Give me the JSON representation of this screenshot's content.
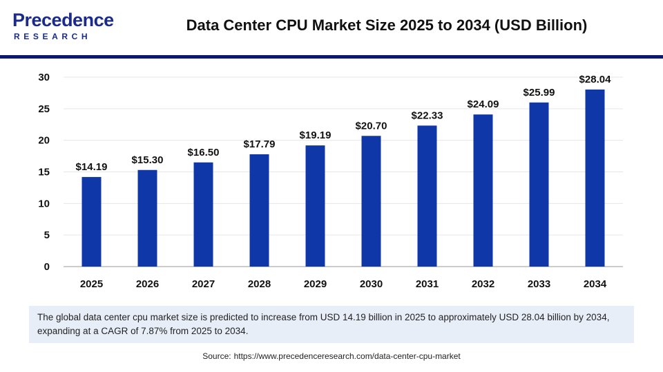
{
  "brand": {
    "name": "Precedence",
    "sub": "RESEARCH",
    "color": "#1a2b8a"
  },
  "header": {
    "title": "Data Center CPU Market Size 2025 to 2034 (USD Billion)"
  },
  "chart_data": {
    "type": "bar",
    "title": "Data Center CPU Market Size 2025 to 2034 (USD Billion)",
    "xlabel": "",
    "ylabel": "",
    "categories": [
      "2025",
      "2026",
      "2027",
      "2028",
      "2029",
      "2030",
      "2031",
      "2032",
      "2033",
      "2034"
    ],
    "values": [
      14.19,
      15.3,
      16.5,
      17.79,
      19.19,
      20.7,
      22.33,
      24.09,
      25.99,
      28.04
    ],
    "value_labels": [
      "$14.19",
      "$15.30",
      "$16.50",
      "$17.79",
      "$19.19",
      "$20.70",
      "$22.33",
      "$24.09",
      "$25.99",
      "$28.04"
    ],
    "yticks": [
      "0",
      "5",
      "10",
      "15",
      "20",
      "25",
      "30"
    ],
    "ylim": [
      0,
      30
    ],
    "grid": true,
    "bar_color": "#0f37a8"
  },
  "description": "The global data center cpu market size is predicted to increase from USD 14.19 billion in 2025 to approximately USD 28.04 billion by 2034, expanding at a CAGR of 7.87% from 2025 to 2034.",
  "source": {
    "label": "Source:",
    "url": "https://www.precedenceresearch.com/data-center-cpu-market"
  }
}
